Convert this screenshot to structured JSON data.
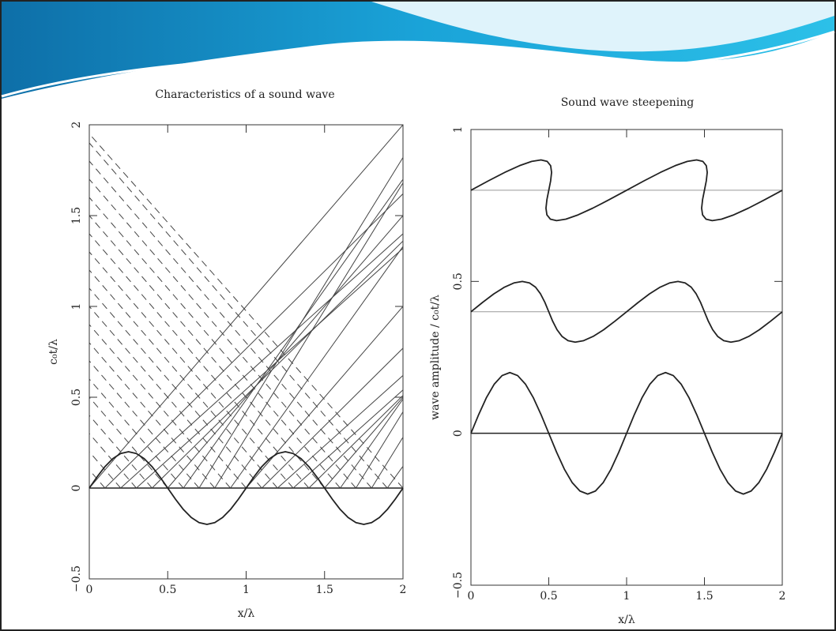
{
  "chart_data": [
    {
      "type": "line",
      "title": "Characteristics of a sound wave",
      "x_label": "x/λ",
      "y_label": "c₀t/λ",
      "xlim": [
        0,
        2
      ],
      "ylim": [
        -0.5,
        2
      ],
      "xticks": [
        0,
        0.5,
        1,
        1.5,
        2
      ],
      "yticks": [
        {
          "value": -0.5,
          "label": "−0.5"
        },
        0,
        0.5,
        1,
        1.5,
        2
      ],
      "color": "#222",
      "series": [
        {
          "x": [
            0,
            0.05,
            0.1,
            0.15,
            0.2,
            0.25,
            0.3,
            0.35,
            0.4,
            0.45,
            0.5,
            0.55,
            0.6,
            0.65,
            0.7,
            0.75,
            0.8,
            0.85,
            0.9,
            0.95,
            1,
            1.05,
            1.1,
            1.15,
            1.2,
            1.25,
            1.3,
            1.35,
            1.4,
            1.45,
            1.5,
            1.55,
            1.6,
            1.65,
            1.7,
            1.75,
            1.8,
            1.85,
            1.9,
            1.95,
            2
          ],
          "values": [
            0,
            0.062,
            0.118,
            0.162,
            0.19,
            0.2,
            0.19,
            0.162,
            0.118,
            0.062,
            0,
            -0.062,
            -0.118,
            -0.162,
            -0.19,
            -0.2,
            -0.19,
            -0.162,
            -0.118,
            -0.062,
            0,
            0.062,
            0.118,
            0.162,
            0.19,
            0.2,
            0.19,
            0.162,
            0.118,
            0.062,
            0,
            -0.062,
            -0.118,
            -0.162,
            -0.19,
            -0.2,
            -0.19,
            -0.162,
            -0.118,
            -0.062,
            0
          ]
        }
      ],
      "reference_lines": [
        0
      ],
      "characteristics": {
        "x0": [
          0,
          0.1,
          0.2,
          0.3,
          0.4,
          0.5,
          0.6,
          0.7,
          0.8,
          0.9,
          1,
          1.1,
          1.2,
          1.3,
          1.4,
          1.5,
          1.6,
          1.7,
          1.8,
          1.9
        ],
        "t_end": [
          2,
          1.62,
          1.4,
          1.32,
          1.36,
          1.5,
          1.7,
          1.82,
          1.68,
          1.33,
          1,
          0.77,
          0.62,
          0.54,
          0.51,
          0.5,
          0.49,
          0.42,
          0.28,
          0.12
        ]
      },
      "dashed_characteristics": {
        "x0": [
          0.1,
          0.2,
          0.3,
          0.4,
          0.5,
          0.6,
          0.7,
          0.8,
          0.9,
          1,
          1.1,
          1.2,
          1.3,
          1.4,
          1.5,
          1.6,
          1.7,
          1.8,
          1.9,
          2
        ],
        "t_end": [
          0.1,
          0.2,
          0.3,
          0.4,
          0.5,
          0.6,
          0.7,
          0.8,
          0.9,
          1,
          1.1,
          1.2,
          1.3,
          1.4,
          1.5,
          1.6,
          1.7,
          1.8,
          1.9,
          1.95
        ]
      }
    },
    {
      "type": "line",
      "title": "Sound wave steepening",
      "x_label": "x/λ",
      "y_label": "wave amplitude / c₀t/λ",
      "xlim": [
        0,
        2
      ],
      "ylim": [
        -0.5,
        1
      ],
      "xticks": [
        0,
        0.5,
        1,
        1.5,
        2
      ],
      "yticks": [
        {
          "value": -0.5,
          "label": "−0.5"
        },
        0,
        0.5,
        1
      ],
      "color": "#222",
      "reference_lines": [
        0,
        0.4,
        0.8
      ],
      "series": [
        {
          "x": [
            0,
            0.05,
            0.1,
            0.15,
            0.2,
            0.25,
            0.3,
            0.35,
            0.4,
            0.45,
            0.5,
            0.55,
            0.6,
            0.65,
            0.7,
            0.75,
            0.8,
            0.85,
            0.9,
            0.95,
            1,
            1.05,
            1.1,
            1.15,
            1.2,
            1.25,
            1.3,
            1.35,
            1.4,
            1.45,
            1.5,
            1.55,
            1.6,
            1.65,
            1.7,
            1.75,
            1.8,
            1.85,
            1.9,
            1.95,
            2
          ],
          "values": [
            0,
            0.062,
            0.118,
            0.162,
            0.19,
            0.2,
            0.19,
            0.162,
            0.118,
            0.062,
            0,
            -0.062,
            -0.118,
            -0.162,
            -0.19,
            -0.2,
            -0.19,
            -0.162,
            -0.118,
            -0.062,
            0,
            0.062,
            0.118,
            0.162,
            0.19,
            0.2,
            0.19,
            0.162,
            0.118,
            0.062,
            0,
            -0.062,
            -0.118,
            -0.162,
            -0.19,
            -0.2,
            -0.19,
            -0.162,
            -0.118,
            -0.062,
            0
          ]
        },
        {
          "x": [
            0,
            0.075,
            0.147,
            0.215,
            0.276,
            0.33,
            0.376,
            0.415,
            0.447,
            0.475,
            0.5,
            0.525,
            0.553,
            0.585,
            0.624,
            0.67,
            0.724,
            0.785,
            0.853,
            0.925,
            1,
            1.075,
            1.147,
            1.215,
            1.276,
            1.33,
            1.376,
            1.415,
            1.447,
            1.475,
            1.5,
            1.525,
            1.553,
            1.585,
            1.624,
            1.67,
            1.724,
            1.785,
            1.853,
            1.925,
            2
          ],
          "values": [
            0.4,
            0.431,
            0.459,
            0.481,
            0.495,
            0.5,
            0.495,
            0.481,
            0.459,
            0.431,
            0.4,
            0.369,
            0.341,
            0.319,
            0.305,
            0.3,
            0.305,
            0.319,
            0.341,
            0.369,
            0.4,
            0.431,
            0.459,
            0.481,
            0.495,
            0.5,
            0.495,
            0.481,
            0.459,
            0.431,
            0.4,
            0.369,
            0.341,
            0.319,
            0.305,
            0.3,
            0.305,
            0.319,
            0.341,
            0.369,
            0.4
          ]
        },
        {
          "x": [
            0,
            0.112,
            0.218,
            0.312,
            0.39,
            0.45,
            0.49,
            0.512,
            0.518,
            0.512,
            0.5,
            0.488,
            0.482,
            0.488,
            0.51,
            0.55,
            0.61,
            0.688,
            0.782,
            0.888,
            1,
            1.112,
            1.218,
            1.312,
            1.39,
            1.45,
            1.49,
            1.512,
            1.518,
            1.512,
            1.5,
            1.488,
            1.482,
            1.488,
            1.51,
            1.55,
            1.61,
            1.688,
            1.782,
            1.888,
            2
          ],
          "values": [
            0.8,
            0.831,
            0.859,
            0.881,
            0.895,
            0.9,
            0.895,
            0.881,
            0.859,
            0.831,
            0.8,
            0.769,
            0.741,
            0.719,
            0.705,
            0.7,
            0.705,
            0.719,
            0.741,
            0.769,
            0.8,
            0.831,
            0.859,
            0.881,
            0.895,
            0.9,
            0.895,
            0.881,
            0.859,
            0.831,
            0.8,
            0.769,
            0.741,
            0.719,
            0.705,
            0.7,
            0.705,
            0.719,
            0.741,
            0.769,
            0.8
          ]
        }
      ]
    }
  ]
}
